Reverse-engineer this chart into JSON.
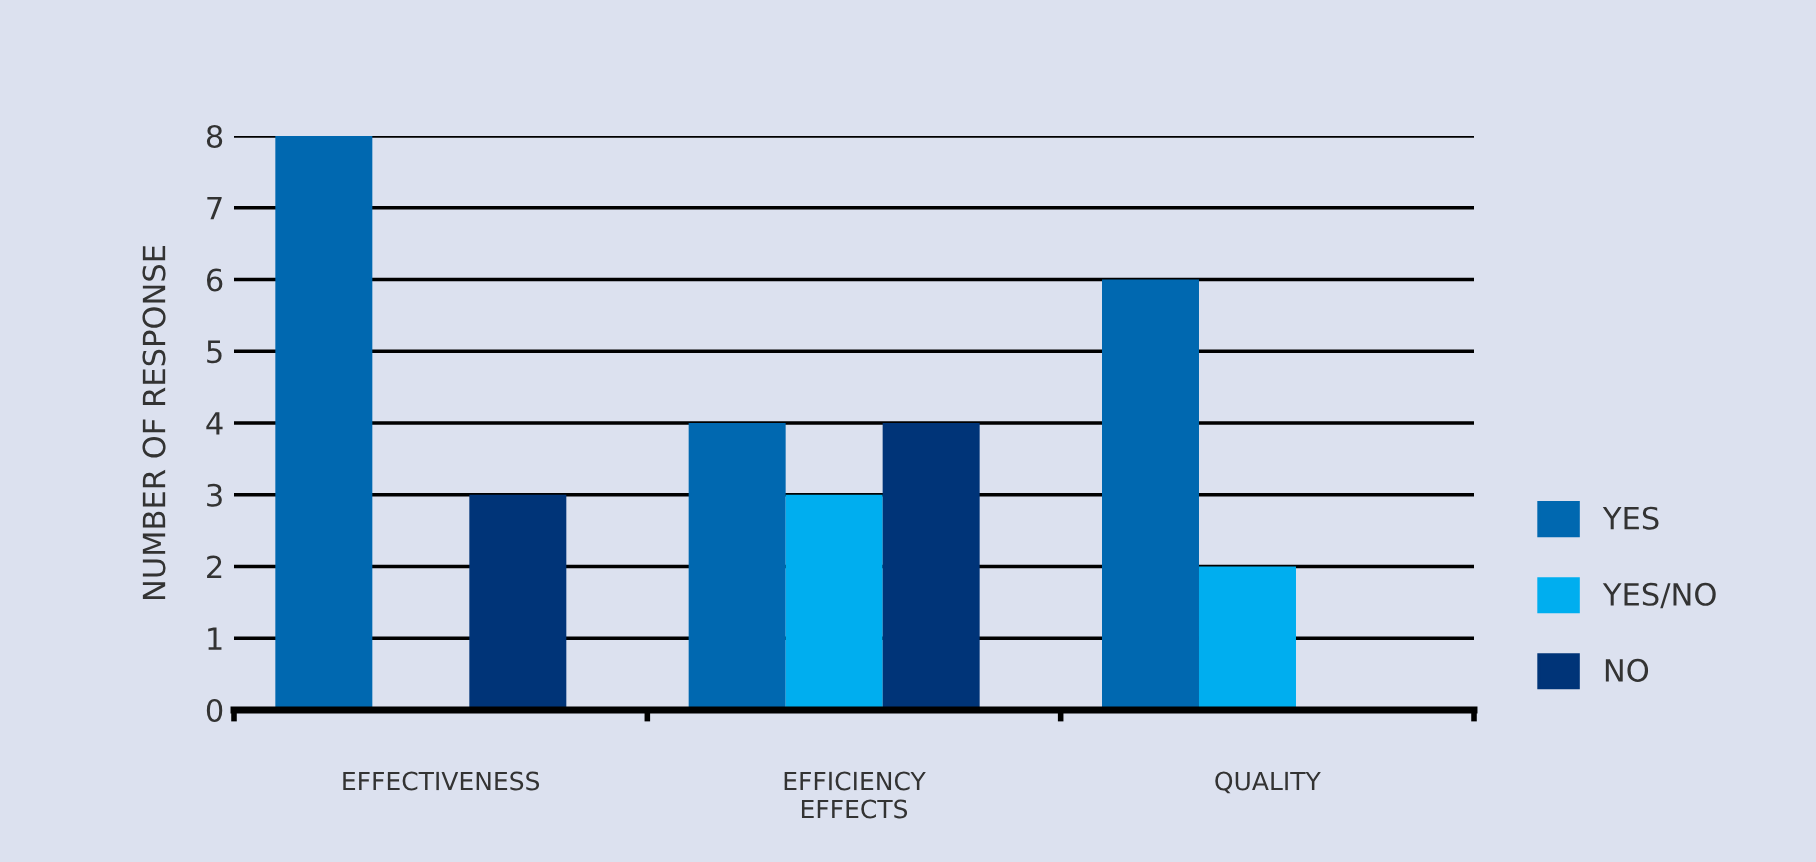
{
  "chart_data": {
    "type": "bar",
    "ylabel": "NUMBER OF RESPONSE",
    "categories": [
      "EFFECTIVENESS",
      "EFFICIENCY\nEFFECTS",
      "QUALITY"
    ],
    "series": [
      {
        "name": "YES",
        "color": "#0068b0",
        "values": [
          8,
          4,
          6
        ]
      },
      {
        "name": "YES/NO",
        "color": "#00aeef",
        "values": [
          0,
          3,
          2
        ]
      },
      {
        "name": "NO",
        "color": "#003478",
        "values": [
          3,
          4,
          0
        ]
      }
    ],
    "ylim": [
      0,
      8
    ],
    "yticks": [
      0,
      1,
      2,
      3,
      4,
      5,
      6,
      7,
      8
    ],
    "grid": "y",
    "legend": "right"
  }
}
